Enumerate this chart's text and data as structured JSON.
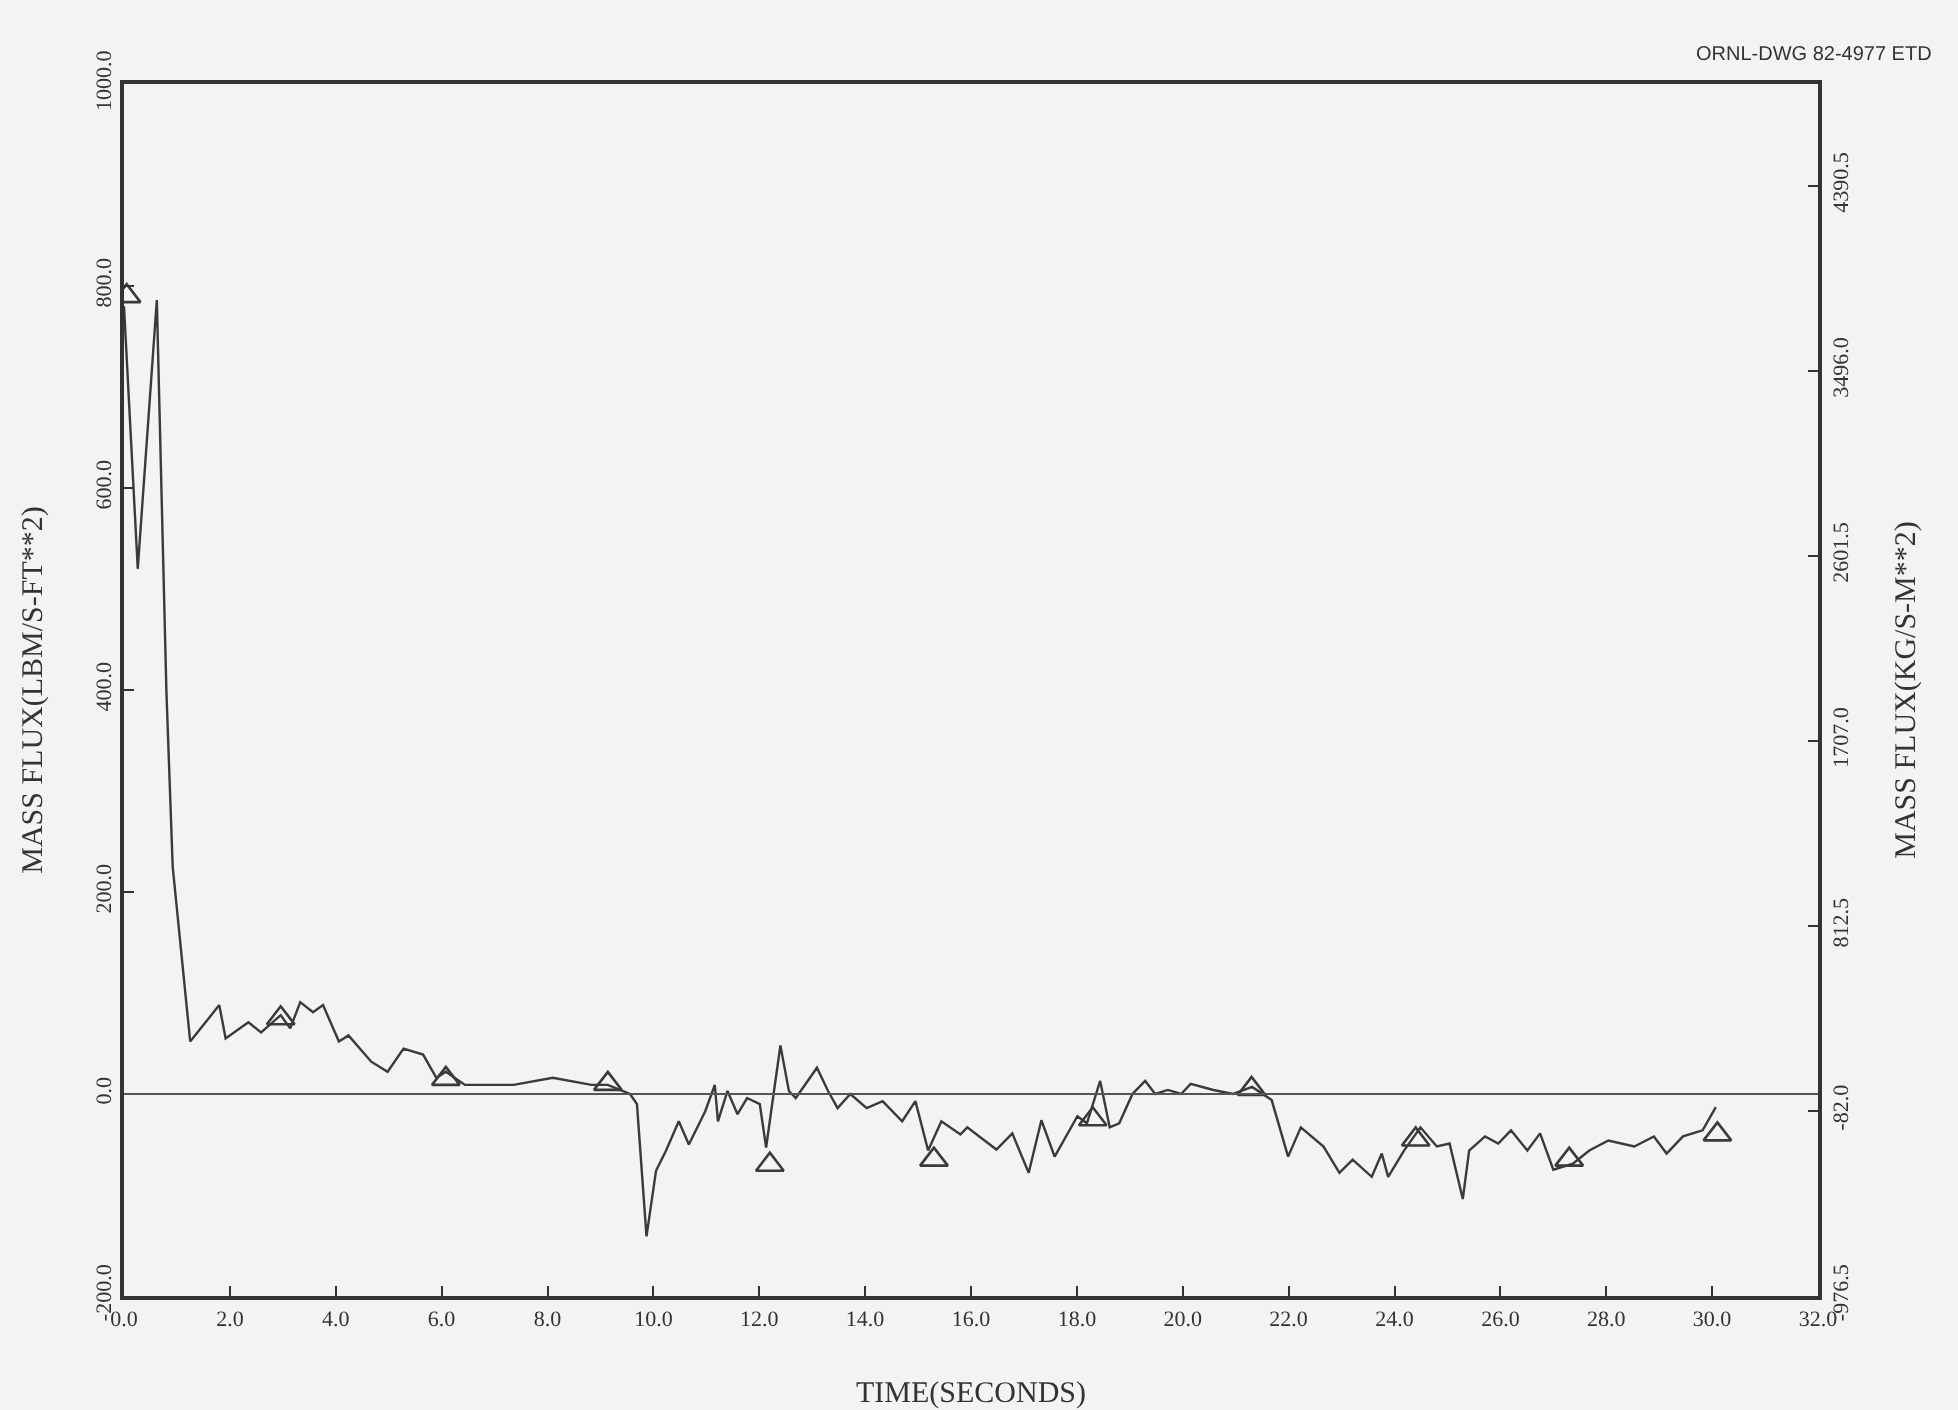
{
  "chart_data": {
    "type": "line",
    "xlabel": "TIME(SECONDS)",
    "ylabel": "MASS FLUX(LBM/S-FT**2)",
    "y2label": "MASS FLUX(KG/S-M**2)",
    "annotations": [
      "ORNL-DWG 82-4977 ETD"
    ],
    "xlim": [
      0,
      32
    ],
    "xticks": [
      {
        "value": 0,
        "label": "0.0"
      },
      {
        "value": 2,
        "label": "2.0"
      },
      {
        "value": 4,
        "label": "4.0"
      },
      {
        "value": 6,
        "label": "6.0"
      },
      {
        "value": 8,
        "label": "8.0"
      },
      {
        "value": 10,
        "label": "10.0"
      },
      {
        "value": 12,
        "label": "12.0"
      },
      {
        "value": 14,
        "label": "14.0"
      },
      {
        "value": 16,
        "label": "16.0"
      },
      {
        "value": 18,
        "label": "18.0"
      },
      {
        "value": 20,
        "label": "20.0"
      },
      {
        "value": 22,
        "label": "22.0"
      },
      {
        "value": 24,
        "label": "24.0"
      },
      {
        "value": 26,
        "label": "26.0"
      },
      {
        "value": 28,
        "label": "28.0"
      },
      {
        "value": 30,
        "label": "30.0"
      },
      {
        "value": 32,
        "label": "32.0"
      }
    ],
    "ylim": [
      -200,
      1000
    ],
    "yticks": [
      {
        "value": -200,
        "label": "-200.0"
      },
      {
        "value": 0,
        "label": "0.0"
      },
      {
        "value": 200,
        "label": "200.0"
      },
      {
        "value": 400,
        "label": "400.0"
      },
      {
        "value": 600,
        "label": "600.0"
      },
      {
        "value": 800,
        "label": "800.0"
      },
      {
        "value": 1000,
        "label": "1000.0"
      }
    ],
    "y2lim": [
      -976.5,
      4882.4
    ],
    "y2ticks": [
      {
        "value": -976.5,
        "label": "-976.5"
      },
      {
        "value": -82,
        "label": "-82.0"
      },
      {
        "value": 812.5,
        "label": "812.5"
      },
      {
        "value": 1707,
        "label": "1707.0"
      },
      {
        "value": 2601.5,
        "label": "2601.5"
      },
      {
        "value": 3496,
        "label": "3496.0"
      },
      {
        "value": 4390.5,
        "label": "4390.5"
      }
    ],
    "grid": false,
    "legend": false,
    "line_style": "solid",
    "ref_lines": [
      {
        "axis": "y",
        "value": 0,
        "color": "#555555"
      }
    ],
    "series": [
      {
        "marker": "none",
        "color": "#3a3a3a",
        "x": [
          0,
          0.26,
          0.62,
          0.8,
          0.92,
          1.25,
          1.8,
          1.92,
          2.35,
          2.59,
          2.96,
          3.14,
          3.33,
          3.57,
          3.76,
          4.06,
          4.24,
          4.67,
          4.98,
          5.28,
          5.65,
          5.9,
          6.08,
          6.44,
          7.36,
          8.1,
          8.83,
          9.14,
          9.56,
          9.69,
          9.87,
          10.05,
          10.24,
          10.48,
          10.67,
          10.98,
          11.16,
          11.22,
          11.4,
          11.59,
          11.77,
          12.01,
          12.13,
          12.26,
          12.4,
          12.56,
          12.69,
          13.09,
          13.3,
          13.48,
          13.72,
          14.03,
          14.33,
          14.7,
          14.95,
          15.19,
          15.44,
          15.8,
          15.93,
          16.48,
          16.78,
          17.09,
          17.33,
          17.58,
          18.01,
          18.19,
          18.44,
          18.62,
          18.8,
          19.05,
          19.29,
          19.48,
          19.72,
          19.97,
          20.15,
          20.58,
          20.95,
          21.31,
          21.68,
          21.99,
          22.23,
          22.66,
          22.96,
          23.21,
          23.57,
          23.76,
          23.88,
          24.18,
          24.49,
          24.8,
          25.04,
          25.29,
          25.41,
          25.71,
          25.96,
          26.2,
          26.51,
          26.75,
          27,
          27.37,
          27.68,
          28.04,
          28.53,
          28.9,
          29.14,
          29.45,
          29.82,
          30.07
        ],
        "values": [
          780,
          520,
          786,
          400,
          225,
          52,
          88,
          55,
          71,
          61,
          78,
          65,
          91,
          81,
          88,
          52,
          58,
          32,
          22,
          45,
          39,
          16,
          22,
          9,
          9,
          16,
          9,
          9,
          0,
          -10,
          -141,
          -76,
          -56,
          -27,
          -50,
          -17,
          9,
          -27,
          3,
          -20,
          -4,
          -10,
          -53,
          -4,
          48,
          3,
          -4,
          26,
          3,
          -14,
          0,
          -14,
          -7,
          -27,
          -7,
          -56,
          -27,
          -40,
          -33,
          -55,
          -39,
          -78,
          -26,
          -62,
          -22,
          -29,
          13,
          -33,
          -29,
          0,
          13,
          0,
          4,
          0,
          10,
          4,
          0,
          7,
          -6,
          -62,
          -33,
          -52,
          -78,
          -65,
          -82,
          -59,
          -82,
          -56,
          -33,
          -52,
          -49,
          -104,
          -56,
          -42,
          -49,
          -36,
          -56,
          -39,
          -75,
          -69,
          -56,
          -46,
          -52,
          -42,
          -59,
          -42,
          -36,
          -13
        ]
      },
      {
        "type": "scatter",
        "marker": "triangle",
        "color": "#3a3a3a",
        "x": [
          0.05,
          2.96,
          6.08,
          9.14,
          12.2,
          15.3,
          18.3,
          21.3,
          24.4,
          27.3,
          30.1
        ],
        "values": [
          790,
          75,
          15,
          10,
          -70,
          -65,
          -25,
          5,
          -45,
          -65,
          -40
        ]
      }
    ]
  }
}
